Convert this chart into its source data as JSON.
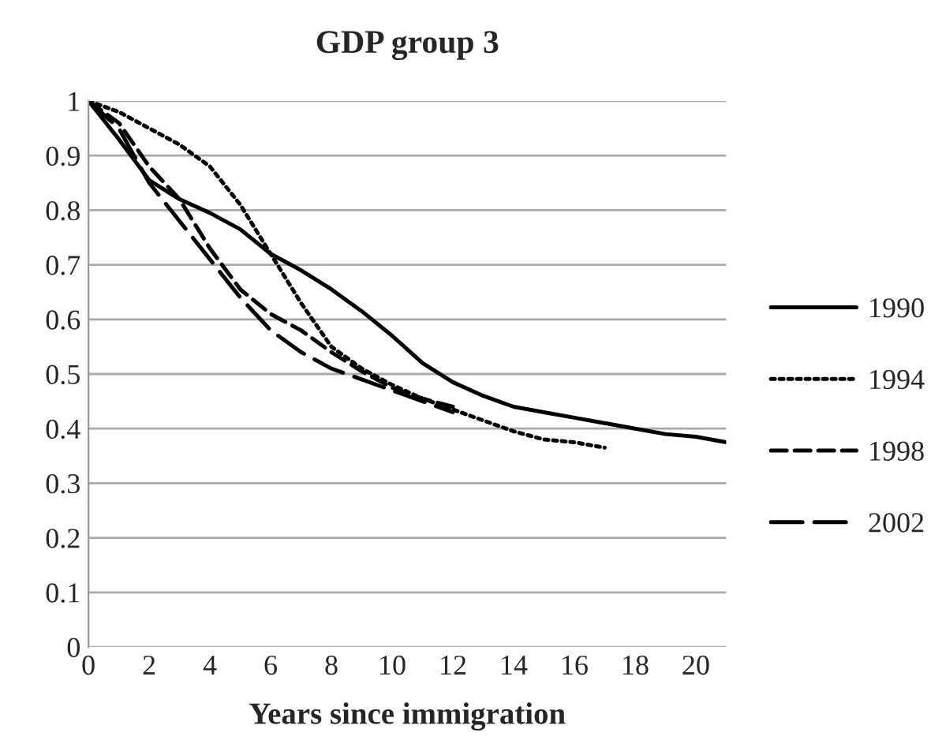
{
  "chart_data": {
    "type": "line",
    "title": "GDP group 3",
    "xlabel": "Years since immigration",
    "xlim": [
      0,
      21
    ],
    "xticks": [
      0,
      2,
      4,
      6,
      8,
      10,
      12,
      14,
      16,
      18,
      20
    ],
    "ylim": [
      0,
      1
    ],
    "yticks": [
      0,
      0.1,
      0.2,
      0.3,
      0.4,
      0.5,
      0.6,
      0.7,
      0.8,
      0.9,
      1
    ],
    "grid": "y",
    "legend": "right",
    "marker": "none",
    "series": [
      {
        "name": "1990",
        "color": "#000000",
        "line_style": "solid",
        "x": [
          0,
          1,
          2,
          3,
          4,
          5,
          6,
          7,
          8,
          9,
          10,
          11,
          12,
          13,
          14,
          15,
          16,
          17,
          18,
          19,
          20,
          21
        ],
        "values": [
          1,
          0.93,
          0.855,
          0.82,
          0.795,
          0.765,
          0.72,
          0.69,
          0.655,
          0.615,
          0.57,
          0.52,
          0.485,
          0.46,
          0.44,
          0.43,
          0.42,
          0.41,
          0.4,
          0.39,
          0.385,
          0.375
        ]
      },
      {
        "name": "1994",
        "color": "#000000",
        "line_style": "dotted",
        "x": [
          0,
          1,
          2,
          3,
          4,
          5,
          6,
          7,
          8,
          9,
          10,
          11,
          12,
          13,
          14,
          15,
          16,
          17
        ],
        "values": [
          1,
          0.98,
          0.95,
          0.92,
          0.88,
          0.81,
          0.72,
          0.63,
          0.55,
          0.51,
          0.48,
          0.455,
          0.435,
          0.415,
          0.395,
          0.38,
          0.375,
          0.365
        ]
      },
      {
        "name": "1998",
        "color": "#000000",
        "line_style": "dashed",
        "x": [
          0,
          1,
          2,
          3,
          4,
          5,
          6,
          7,
          8,
          9,
          10,
          11,
          12
        ],
        "values": [
          1,
          0.96,
          0.88,
          0.82,
          0.73,
          0.655,
          0.61,
          0.58,
          0.54,
          0.505,
          0.475,
          0.455,
          0.44
        ]
      },
      {
        "name": "2002",
        "color": "#000000",
        "line_style": "longdash",
        "x": [
          0,
          1,
          2,
          3,
          4,
          5,
          6,
          7,
          8,
          9,
          10,
          11,
          12
        ],
        "values": [
          1,
          0.95,
          0.85,
          0.78,
          0.71,
          0.64,
          0.58,
          0.54,
          0.51,
          0.49,
          0.47,
          0.45,
          0.43
        ]
      }
    ]
  }
}
